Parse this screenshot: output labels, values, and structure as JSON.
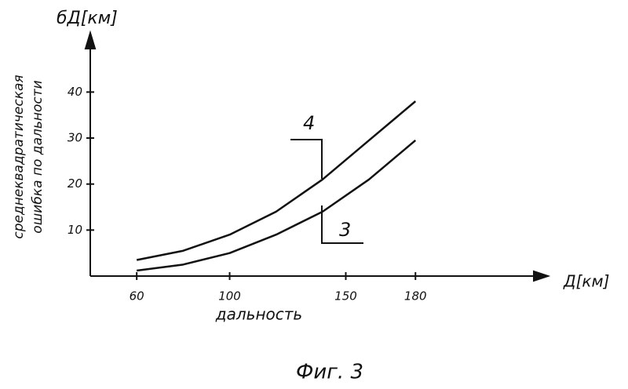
{
  "chart_data": {
    "type": "line",
    "y_symbol": "бД[км]",
    "x_symbol": "Д[км]",
    "ylabel": [
      "среднеквадратическая",
      "ошибка по дальности"
    ],
    "xlabel": "дальность",
    "caption": "Фиг. 3",
    "x": [
      60,
      80,
      100,
      120,
      140,
      160,
      180
    ],
    "series": [
      {
        "name": "4",
        "color": "#111111",
        "values": [
          3.5,
          5.5,
          9,
          14,
          21,
          29.5,
          38
        ]
      },
      {
        "name": "3",
        "color": "#111111",
        "values": [
          1.2,
          2.5,
          5,
          9,
          14,
          21,
          29.5
        ]
      }
    ],
    "xlim": [
      40,
      235
    ],
    "xticks": [
      60,
      100,
      150,
      180
    ],
    "ylim": [
      0,
      52
    ],
    "yticks": [
      10,
      20,
      30,
      40
    ],
    "grid": false
  }
}
